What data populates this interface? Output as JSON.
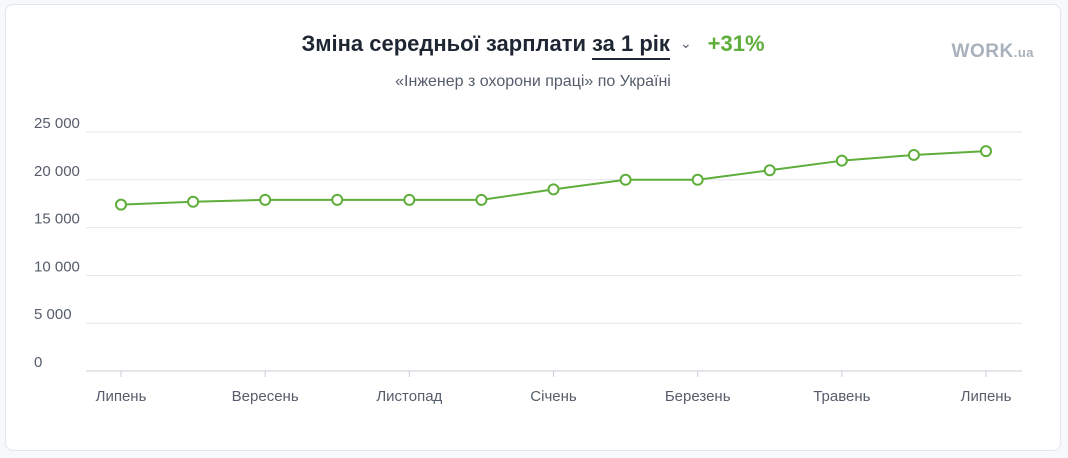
{
  "header": {
    "title": "Зміна середньої зарплати",
    "period_label": "за 1 рік",
    "change_label": "+31%",
    "subtitle": "«Інженер з охорони праці» по Україні",
    "logo_text": "WORK",
    "logo_suffix": ".ua"
  },
  "colors": {
    "accent": "#5fad3a",
    "grid": "#e3e6ea",
    "axis": "#c9ced6",
    "text": "#555d6b"
  },
  "chart_data": {
    "type": "line",
    "title": "Зміна середньої зарплати за 1 рік",
    "xlabel": "",
    "ylabel": "",
    "ylim": [
      0,
      25000
    ],
    "yticks": [
      0,
      5000,
      10000,
      15000,
      20000,
      25000
    ],
    "ytick_labels": [
      "0",
      "5 000",
      "10 000",
      "15 000",
      "20 000",
      "25 000"
    ],
    "x_tick_labels": [
      "Липень",
      "Вересень",
      "Листопад",
      "Січень",
      "Березень",
      "Травень",
      "Липень"
    ],
    "x_tick_positions": [
      0,
      2,
      4,
      6,
      8,
      10,
      12
    ],
    "grid": true,
    "legend": "none",
    "series": [
      {
        "values": [
          17400,
          17700,
          17900,
          17900,
          17900,
          17900,
          19000,
          20000,
          20000,
          21000,
          22000,
          22600,
          23000
        ]
      }
    ]
  }
}
